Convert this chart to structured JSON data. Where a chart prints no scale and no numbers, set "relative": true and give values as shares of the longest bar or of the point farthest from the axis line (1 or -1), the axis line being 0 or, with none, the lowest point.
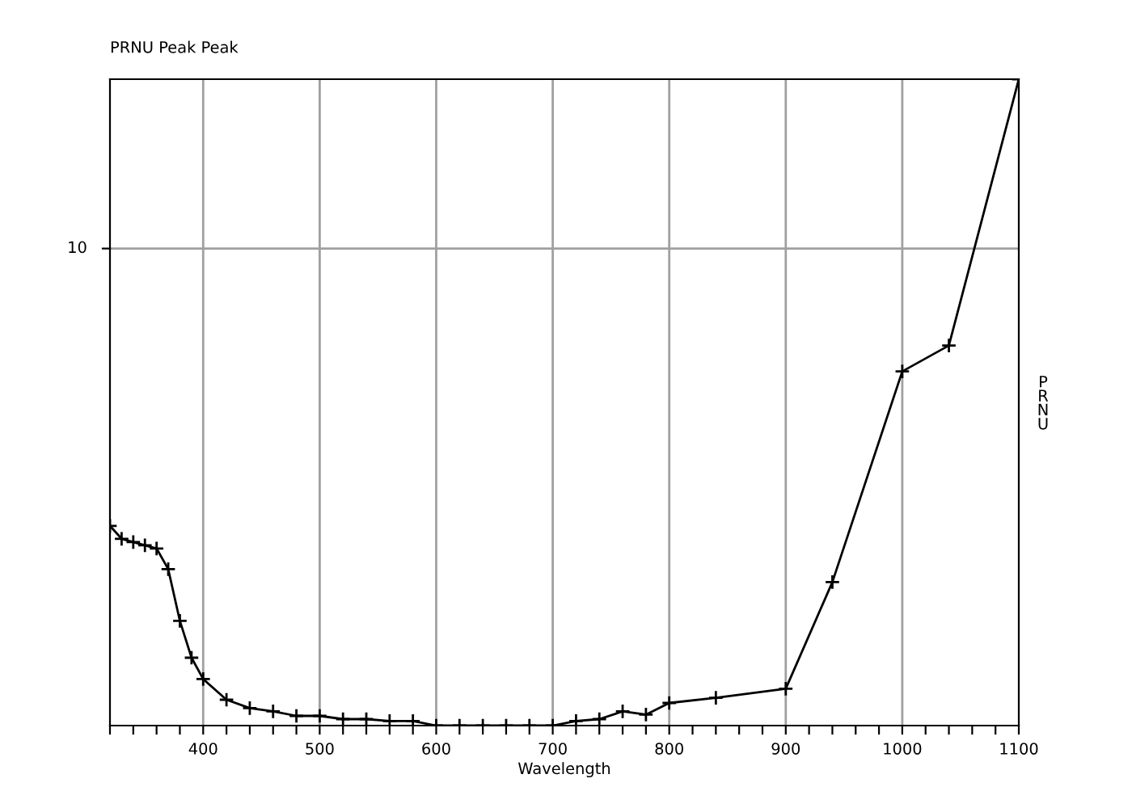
{
  "chart_data": {
    "type": "line",
    "title": "PRNU Peak Peak",
    "xlabel": "Wavelength",
    "ylabel": "PRNU",
    "x": [
      320,
      330,
      340,
      350,
      360,
      370,
      380,
      390,
      400,
      420,
      440,
      460,
      480,
      500,
      520,
      540,
      560,
      580,
      600,
      620,
      640,
      660,
      680,
      700,
      720,
      740,
      760,
      780,
      800,
      840,
      900,
      940,
      1000,
      1040,
      1100
    ],
    "series": [
      {
        "color": "#000000",
        "values": [
          0.309,
          0.289,
          0.284,
          0.279,
          0.274,
          0.242,
          0.162,
          0.105,
          0.072,
          0.04,
          0.027,
          0.022,
          0.015,
          0.015,
          0.01,
          0.01,
          0.007,
          0.007,
          0,
          0,
          0,
          0,
          0,
          0,
          0.007,
          0.01,
          0.022,
          0.017,
          0.035,
          0.043,
          0.057,
          0.222,
          0.548,
          0.588,
          1
        ]
      }
    ],
    "relative": true,
    "ref_lines": [
      {
        "axis": "y",
        "value": 0.738,
        "color": "#a0a0a0"
      }
    ],
    "annotations": [
      "10"
    ],
    "xlim": [
      320,
      1100
    ],
    "xticks": [
      {
        "value": 320,
        "label": null
      },
      {
        "value": 340,
        "label": null
      },
      {
        "value": 360,
        "label": null
      },
      {
        "value": 380,
        "label": null
      },
      400,
      {
        "value": 420,
        "label": null
      },
      {
        "value": 440,
        "label": null
      },
      {
        "value": 460,
        "label": null
      },
      {
        "value": 480,
        "label": null
      },
      500,
      {
        "value": 520,
        "label": null
      },
      {
        "value": 540,
        "label": null
      },
      {
        "value": 560,
        "label": null
      },
      {
        "value": 580,
        "label": null
      },
      600,
      {
        "value": 620,
        "label": null
      },
      {
        "value": 640,
        "label": null
      },
      {
        "value": 660,
        "label": null
      },
      {
        "value": 680,
        "label": null
      },
      700,
      {
        "value": 720,
        "label": null
      },
      {
        "value": 740,
        "label": null
      },
      {
        "value": 760,
        "label": null
      },
      {
        "value": 780,
        "label": null
      },
      800,
      {
        "value": 820,
        "label": null
      },
      {
        "value": 840,
        "label": null
      },
      {
        "value": 860,
        "label": null
      },
      {
        "value": 880,
        "label": null
      },
      900,
      {
        "value": 920,
        "label": null
      },
      {
        "value": 940,
        "label": null
      },
      {
        "value": 960,
        "label": null
      },
      {
        "value": 980,
        "label": null
      },
      1000,
      {
        "value": 1020,
        "label": null
      },
      {
        "value": 1040,
        "label": null
      },
      {
        "value": 1060,
        "label": null
      },
      {
        "value": 1080,
        "label": null
      },
      1100
    ],
    "grid": "x",
    "marker": "cross",
    "line_style": "solid"
  }
}
